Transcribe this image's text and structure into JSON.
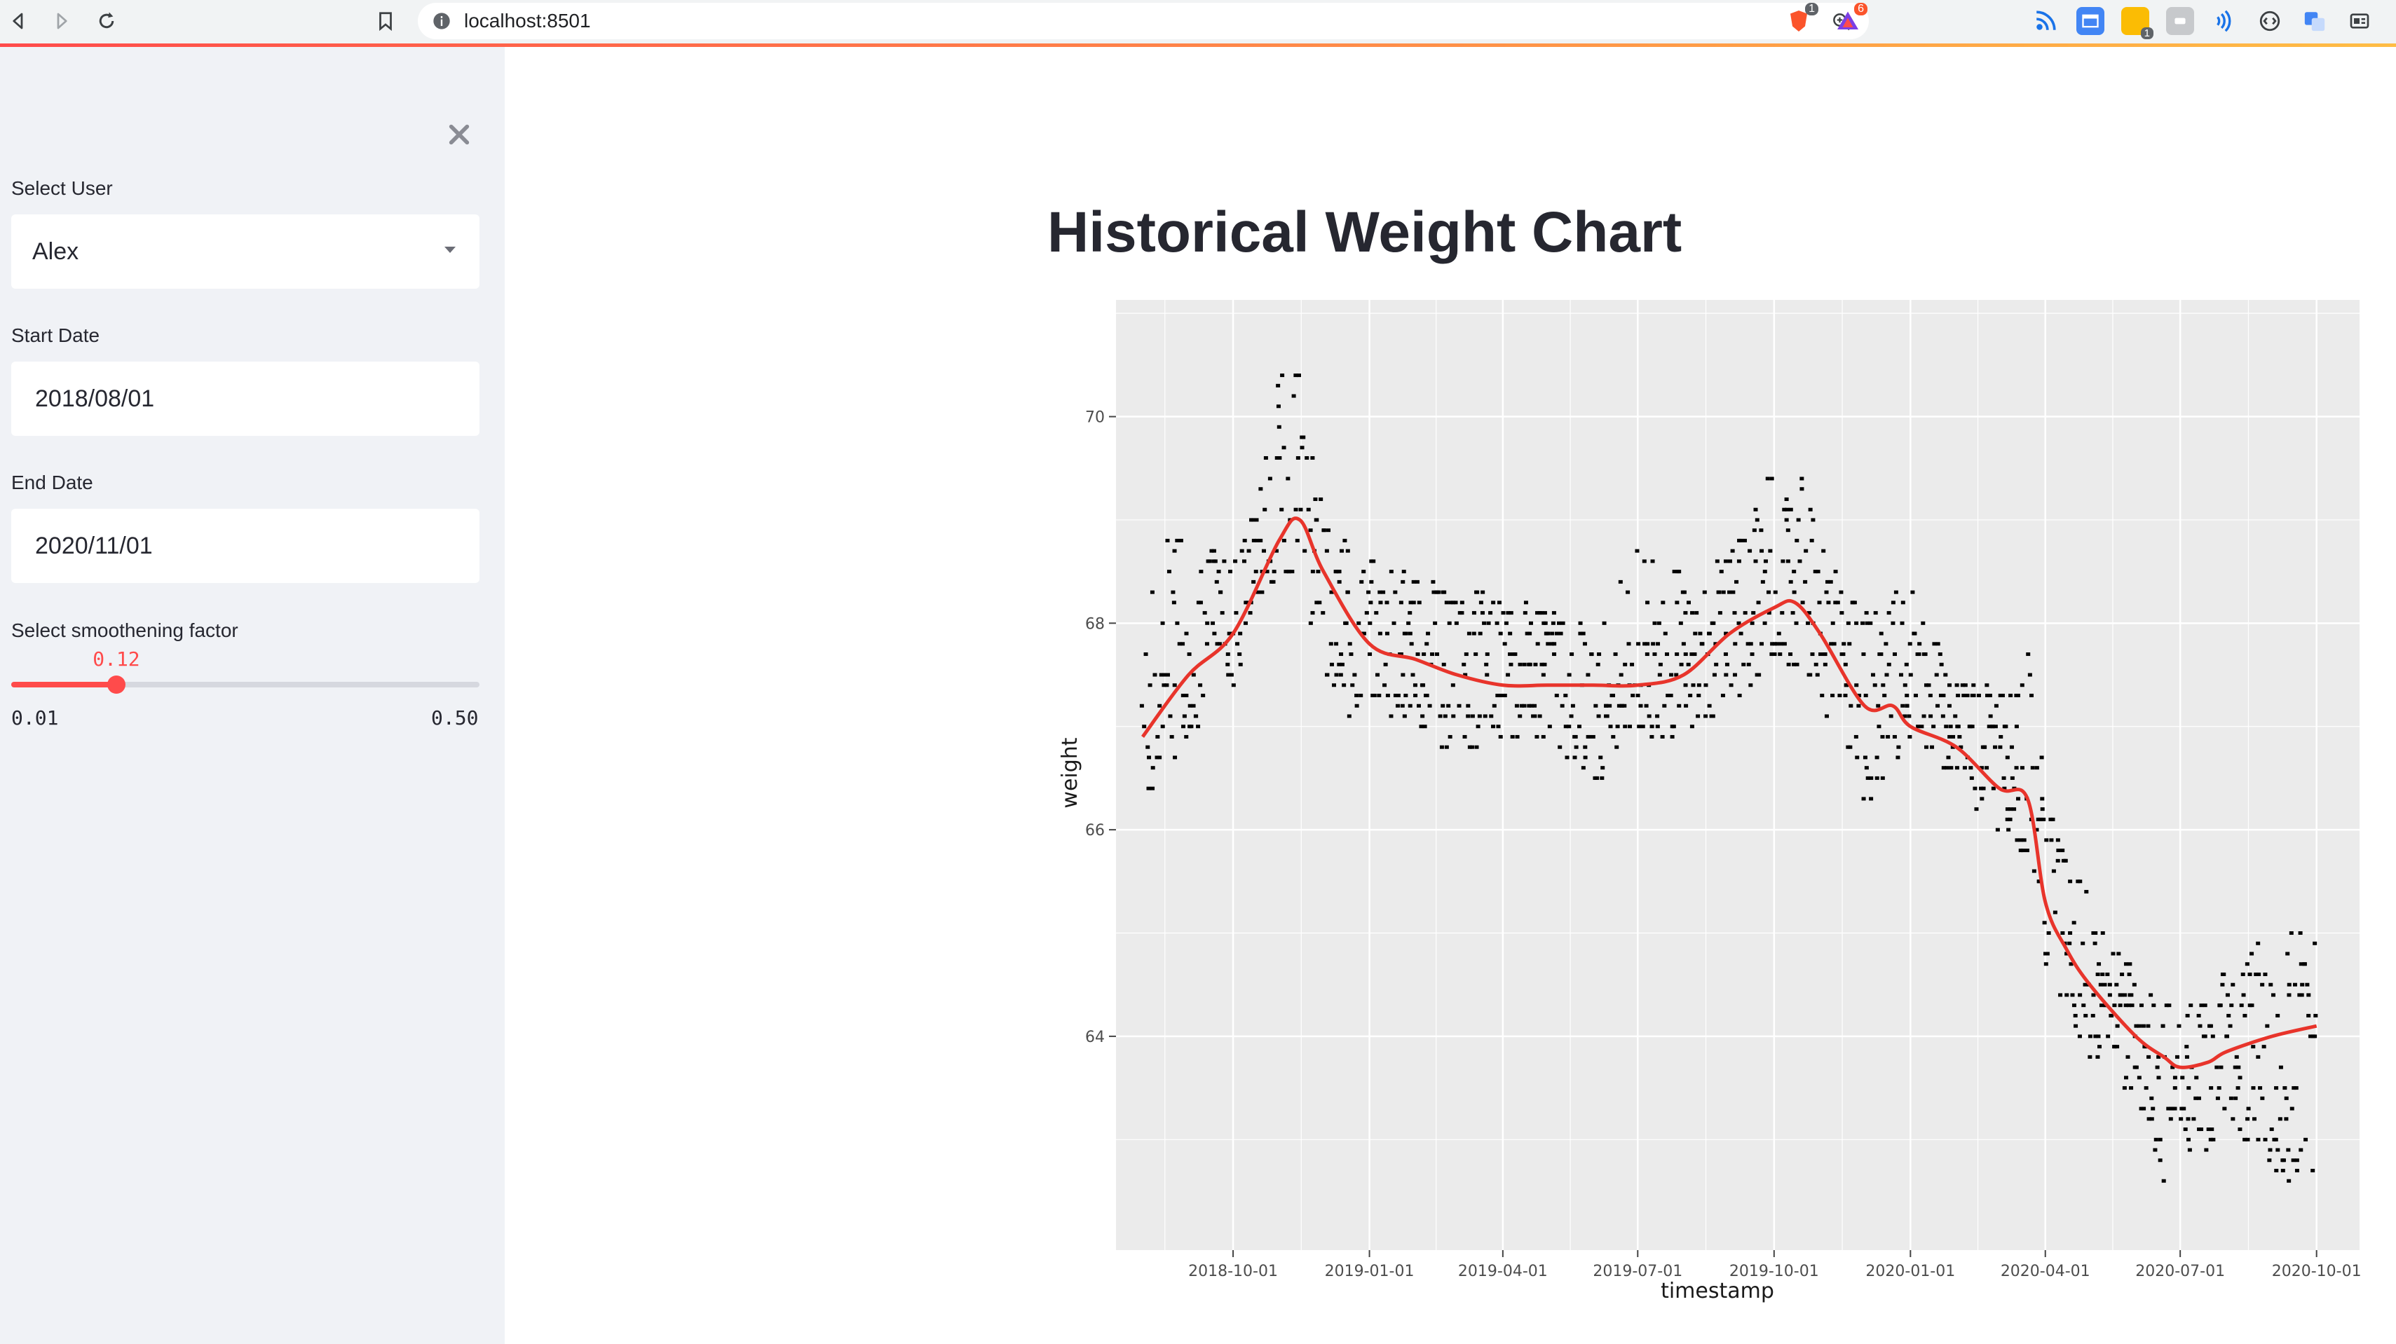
{
  "browser": {
    "url": "localhost:8501",
    "brave_badge": "1",
    "rewards_badge": "6",
    "ext_badge": "1"
  },
  "sidebar": {
    "user_label": "Select User",
    "user_value": "Alex",
    "start_label": "Start Date",
    "start_value": "2018/08/01",
    "end_label": "End Date",
    "end_value": "2020/11/01",
    "smooth_label": "Select smoothening factor",
    "smooth_value": "0.12",
    "smooth_value_num": 0.12,
    "smooth_min": "0.01",
    "smooth_max": "0.50",
    "smooth_min_num": 0.01,
    "smooth_max_num": 0.5
  },
  "main": {
    "title": "Historical Weight Chart"
  },
  "colors": {
    "accent": "#ff4b4b",
    "plot_bg": "#ebebeb",
    "trend": "#e8342b"
  },
  "chart_data": {
    "type": "scatter",
    "xlabel": "timestamp",
    "ylabel": "weight",
    "xlim": [
      "2018-07-14",
      "2020-10-30"
    ],
    "ylim": [
      61.93,
      71.13
    ],
    "x_ticks": [
      "2018-10-01",
      "2019-01-01",
      "2019-04-01",
      "2019-07-01",
      "2019-10-01",
      "2020-01-01",
      "2020-04-01",
      "2020-07-01",
      "2020-10-01"
    ],
    "y_ticks": [
      64,
      66,
      68,
      70
    ],
    "grid": true,
    "smooth_line": {
      "name": "",
      "x": [
        "2018-08-01",
        "2018-09-01",
        "2018-10-01",
        "2018-11-01",
        "2018-11-15",
        "2018-12-01",
        "2019-01-01",
        "2019-02-01",
        "2019-03-01",
        "2019-04-01",
        "2019-05-01",
        "2019-06-01",
        "2019-07-01",
        "2019-08-01",
        "2019-09-01",
        "2019-10-01",
        "2019-10-15",
        "2019-11-01",
        "2019-12-01",
        "2019-12-20",
        "2020-01-01",
        "2020-02-01",
        "2020-03-01",
        "2020-03-20",
        "2020-04-01",
        "2020-04-15",
        "2020-05-01",
        "2020-06-01",
        "2020-06-20",
        "2020-07-01",
        "2020-07-20",
        "2020-08-01",
        "2020-09-01",
        "2020-10-01"
      ],
      "y": [
        66.9,
        67.5,
        67.9,
        68.8,
        69.0,
        68.5,
        67.8,
        67.65,
        67.5,
        67.4,
        67.4,
        67.4,
        67.4,
        67.5,
        67.9,
        68.15,
        68.2,
        67.9,
        67.2,
        67.2,
        67.0,
        66.8,
        66.4,
        66.3,
        65.3,
        64.85,
        64.5,
        64.0,
        63.8,
        63.7,
        63.75,
        63.85,
        64.0,
        64.1
      ]
    },
    "scatter_clusters": [
      {
        "x": "2018-08-01",
        "y": [
          66.2,
          66.8,
          67.4,
          67.7
        ]
      },
      {
        "x": "2018-08-15",
        "y": [
          66.5,
          67.2,
          68.0,
          69.0
        ]
      },
      {
        "x": "2018-09-01",
        "y": [
          66.9,
          67.5,
          67.9,
          68.8
        ]
      },
      {
        "x": "2018-09-15",
        "y": [
          67.0,
          67.6,
          68.3,
          68.7
        ]
      },
      {
        "x": "2018-10-01",
        "y": [
          67.3,
          67.8,
          68.3,
          68.6
        ]
      },
      {
        "x": "2018-10-15",
        "y": [
          68.0,
          68.4,
          69.0,
          69.3
        ]
      },
      {
        "x": "2018-11-01",
        "y": [
          68.5,
          69.0,
          69.7,
          70.5
        ]
      },
      {
        "x": "2018-11-15",
        "y": [
          68.2,
          69.0,
          69.7,
          70.9
        ]
      },
      {
        "x": "2018-12-01",
        "y": [
          67.6,
          68.3,
          68.9,
          69.0
        ]
      },
      {
        "x": "2018-12-15",
        "y": [
          67.0,
          67.6,
          68.2,
          68.8
        ]
      },
      {
        "x": "2019-01-01",
        "y": [
          67.2,
          67.7,
          68.1,
          68.6
        ]
      },
      {
        "x": "2019-02-01",
        "y": [
          67.0,
          67.5,
          68.0,
          68.5
        ]
      },
      {
        "x": "2019-03-01",
        "y": [
          66.7,
          67.3,
          67.9,
          68.4
        ]
      },
      {
        "x": "2019-04-01",
        "y": [
          66.9,
          67.4,
          67.8,
          68.3
        ]
      },
      {
        "x": "2019-05-01",
        "y": [
          66.9,
          67.4,
          67.9,
          68.1
        ]
      },
      {
        "x": "2019-06-01",
        "y": [
          66.4,
          67.0,
          67.6,
          68.0
        ]
      },
      {
        "x": "2019-07-01",
        "y": [
          66.8,
          67.3,
          67.9,
          68.7
        ]
      },
      {
        "x": "2019-08-01",
        "y": [
          66.9,
          67.5,
          67.9,
          68.5
        ]
      },
      {
        "x": "2019-09-01",
        "y": [
          67.2,
          67.8,
          68.3,
          68.7
        ]
      },
      {
        "x": "2019-10-01",
        "y": [
          67.5,
          68.0,
          68.7,
          69.5
        ]
      },
      {
        "x": "2019-10-15",
        "y": [
          67.6,
          68.2,
          68.9,
          69.6
        ]
      },
      {
        "x": "2019-11-01",
        "y": [
          67.3,
          67.8,
          68.3,
          68.8
        ]
      },
      {
        "x": "2019-12-01",
        "y": [
          66.2,
          66.9,
          67.5,
          68.1
        ]
      },
      {
        "x": "2020-01-01",
        "y": [
          66.9,
          67.3,
          67.9,
          68.4
        ]
      },
      {
        "x": "2020-02-01",
        "y": [
          66.5,
          66.9,
          67.3,
          67.4
        ]
      },
      {
        "x": "2020-03-01",
        "y": [
          65.9,
          66.5,
          67.0,
          67.4
        ]
      },
      {
        "x": "2020-03-20",
        "y": [
          65.7,
          66.4,
          67.0,
          67.7
        ]
      },
      {
        "x": "2020-04-01",
        "y": [
          64.7,
          65.2,
          65.9,
          66.5
        ]
      },
      {
        "x": "2020-04-15",
        "y": [
          64.2,
          64.8,
          65.3,
          65.9
        ]
      },
      {
        "x": "2020-05-01",
        "y": [
          63.7,
          64.3,
          64.7,
          65.4
        ]
      },
      {
        "x": "2020-06-01",
        "y": [
          63.4,
          63.7,
          64.2,
          64.7
        ]
      },
      {
        "x": "2020-06-20",
        "y": [
          62.6,
          63.2,
          63.9,
          64.4
        ]
      },
      {
        "x": "2020-07-01",
        "y": [
          63.0,
          63.4,
          64.0,
          64.5
        ]
      },
      {
        "x": "2020-07-20",
        "y": [
          62.8,
          63.5,
          64.0,
          64.3
        ]
      },
      {
        "x": "2020-08-01",
        "y": [
          63.2,
          63.7,
          64.2,
          64.7
        ]
      },
      {
        "x": "2020-09-01",
        "y": [
          62.5,
          63.4,
          64.1,
          65.1
        ]
      },
      {
        "x": "2020-10-01",
        "y": [
          62.7,
          63.7,
          64.4,
          65.0
        ]
      }
    ]
  }
}
